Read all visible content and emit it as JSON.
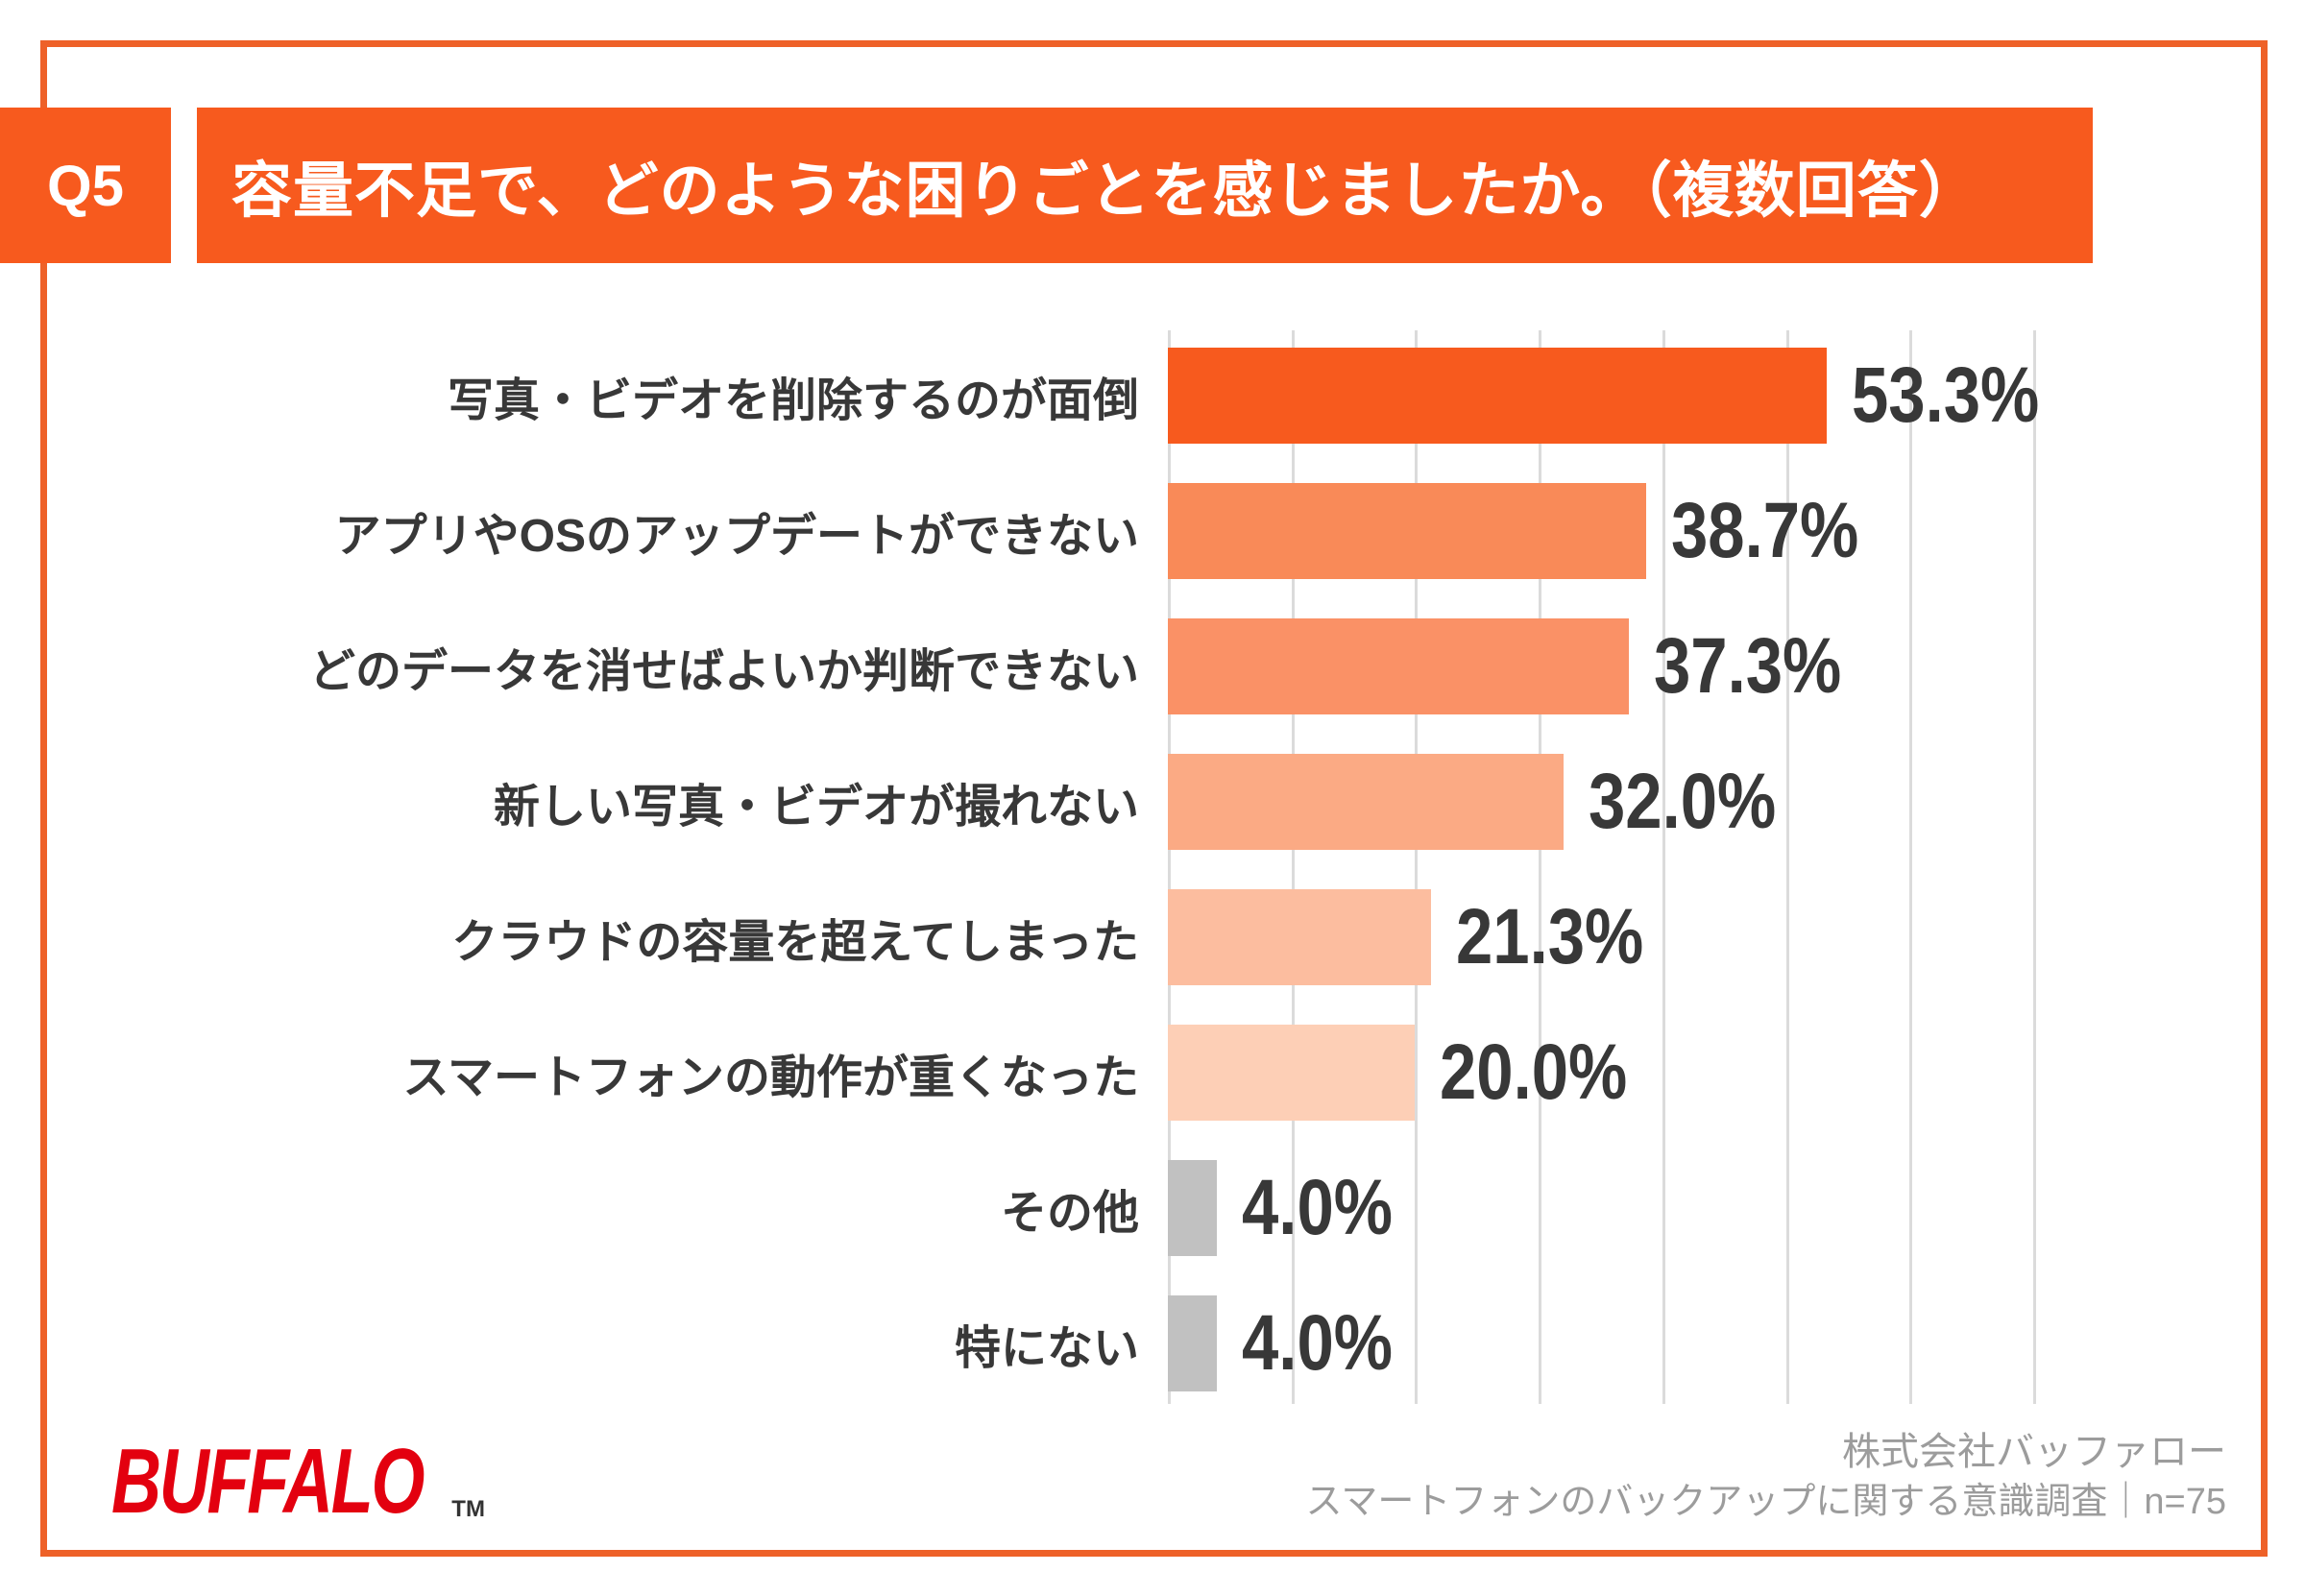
{
  "header": {
    "question_no": "Q5",
    "title": "容量不足で、どのような困りごとを感じましたか。（複数回答）"
  },
  "chart_data": {
    "type": "bar",
    "orientation": "horizontal",
    "title": "容量不足で、どのような困りごとを感じましたか。（複数回答）",
    "categories": [
      "写真・ビデオを削除するのが面倒",
      "アプリやOSのアップデートができない",
      "どのデータを消せばよいか判断できない",
      "新しい写真・ビデオが撮れない",
      "クラウドの容量を超えてしまった",
      "スマートフォンの動作が重くなった",
      "その他",
      "特にない"
    ],
    "values": [
      53.3,
      38.7,
      37.3,
      32.0,
      21.3,
      20.0,
      4.0,
      4.0
    ],
    "value_labels": [
      "53.3%",
      "38.7%",
      "37.3%",
      "32.0%",
      "21.3%",
      "20.0%",
      "4.0%",
      "4.0%"
    ],
    "bar_colors": [
      "#F75A1E",
      "#F98A58",
      "#FA9166",
      "#FBAA84",
      "#FCBD9F",
      "#FDCFB6",
      "#C1C1C1",
      "#C1C1C1"
    ],
    "xlabel": "",
    "ylabel": "",
    "xlim": [
      0,
      70
    ],
    "gridline_step_percent": 10,
    "grid": true,
    "gridline_color": "#DBDBDB",
    "value_text_color": "#383838",
    "label_text_color": "#383838"
  },
  "colors": {
    "accent_orange": "#F75A1E",
    "frame_orange": "#EE6128",
    "logo_red": "#E3000F",
    "footer_gray": "#9C9C9C"
  },
  "footer": {
    "logo_text": "BUFFALO",
    "logo_tm": "TM",
    "source_line1": "株式会社バッファロー",
    "source_line2": "スマートフォンのバックアップに関する意識調査｜n=75"
  }
}
